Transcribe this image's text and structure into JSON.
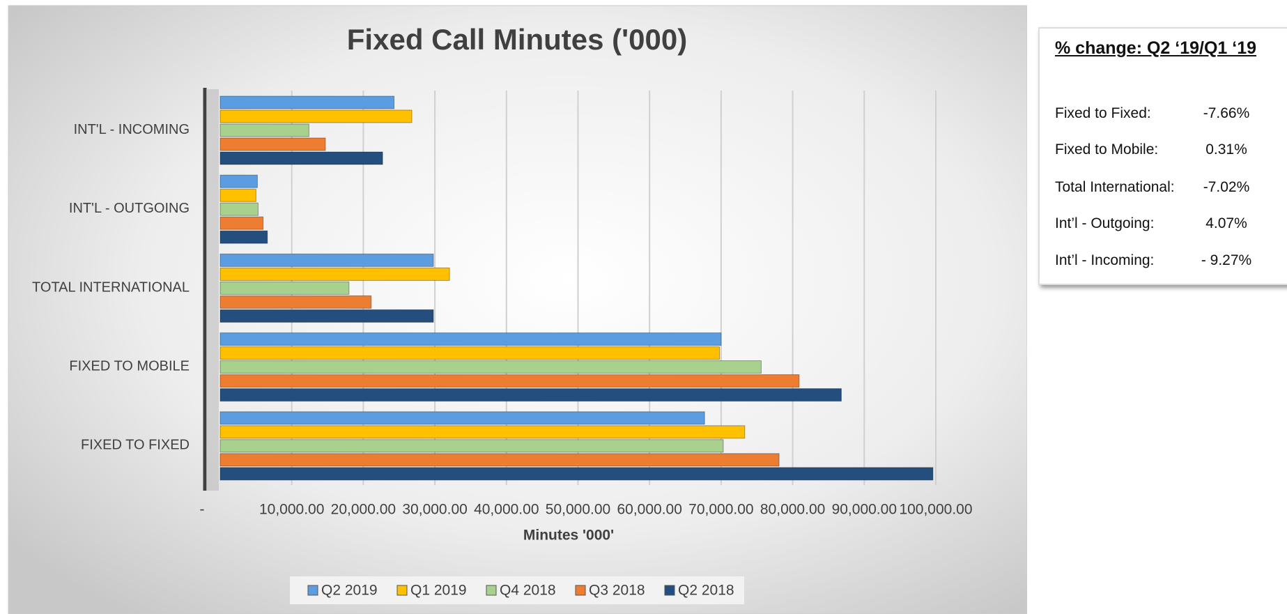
{
  "chart_data": {
    "type": "bar",
    "orientation": "horizontal",
    "title": "Fixed Call Minutes ('000)",
    "x_label": "Minutes '000'",
    "categories": [
      "FIXED TO FIXED",
      "FIXED TO MOBILE",
      "TOTAL INTERNATIONAL",
      "INT'L - OUTGOING",
      "INT'L - INCOMING"
    ],
    "series": [
      {
        "name": "Q2 2019",
        "color": "#5b9de0",
        "values": [
          67690,
          70000,
          29800,
          5200,
          24300
        ]
      },
      {
        "name": "Q1 2019",
        "color": "#ffc000",
        "values": [
          73300,
          69780,
          32050,
          4997,
          26780
        ]
      },
      {
        "name": "Q4 2018",
        "color": "#a9d18e",
        "values": [
          70300,
          75600,
          18000,
          5300,
          12400
        ]
      },
      {
        "name": "Q3 2018",
        "color": "#ed7d31",
        "values": [
          78100,
          80900,
          21100,
          6000,
          14700
        ]
      },
      {
        "name": "Q2 2018",
        "color": "#234e7e",
        "values": [
          99600,
          86800,
          29800,
          6600,
          22700
        ]
      }
    ],
    "xlim": [
      0,
      100000
    ],
    "xticks": [
      {
        "value": 0,
        "label": "-"
      },
      {
        "value": 10000,
        "label": "10,000.00"
      },
      {
        "value": 20000,
        "label": "20,000.00"
      },
      {
        "value": 30000,
        "label": "30,000.00"
      },
      {
        "value": 40000,
        "label": "40,000.00"
      },
      {
        "value": 50000,
        "label": "50,000.00"
      },
      {
        "value": 60000,
        "label": "60,000.00"
      },
      {
        "value": 70000,
        "label": "70,000.00"
      },
      {
        "value": 80000,
        "label": "80,000.00"
      },
      {
        "value": 90000,
        "label": "90,000.00"
      },
      {
        "value": 100000,
        "label": "100,000.00"
      }
    ],
    "grid": true,
    "legend": "bottom"
  },
  "panel": {
    "title": "% change:  Q2 ‘19/Q1 ‘19",
    "rows": [
      [
        "Fixed to Fixed:",
        "-7.66%"
      ],
      [
        "Fixed to Mobile:",
        "0.31%"
      ],
      [
        "Total International:",
        "-7.02%"
      ],
      [
        "Int’l - Outgoing:",
        "4.07%"
      ],
      [
        "Int’l - Incoming:",
        "- 9.27%"
      ]
    ]
  }
}
